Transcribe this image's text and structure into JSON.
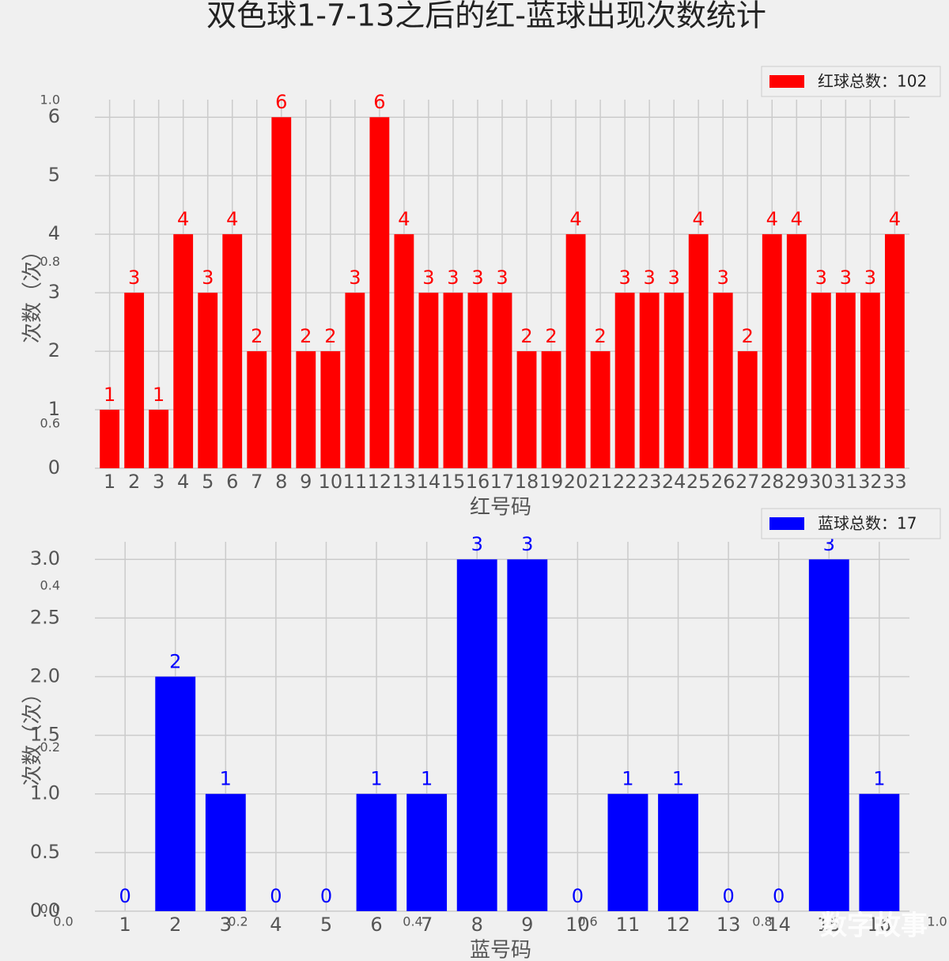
{
  "chart_data": [
    {
      "type": "bar",
      "title": "双色球1-7-13之后的红-蓝球出现次数统计",
      "x": [
        1,
        2,
        3,
        4,
        5,
        6,
        7,
        8,
        9,
        10,
        11,
        12,
        13,
        14,
        15,
        16,
        17,
        18,
        19,
        20,
        21,
        22,
        23,
        24,
        25,
        26,
        27,
        28,
        29,
        30,
        31,
        32,
        33
      ],
      "series": [
        {
          "name": "红球总数：102",
          "color": "#ff0000",
          "values": [
            1,
            3,
            1,
            4,
            3,
            4,
            2,
            6,
            2,
            2,
            3,
            6,
            4,
            3,
            3,
            3,
            3,
            2,
            2,
            4,
            2,
            3,
            3,
            3,
            4,
            3,
            2,
            4,
            4,
            3,
            3,
            3,
            4
          ]
        }
      ],
      "xlabel": "红号码",
      "ylabel": "次数（次）",
      "xlim": [
        0.4,
        33.6
      ],
      "ylim": [
        0,
        6.3
      ],
      "yticks": [
        0,
        1,
        2,
        3,
        4,
        5,
        6
      ],
      "grid": true,
      "legend": "upper right"
    },
    {
      "type": "bar",
      "x": [
        1,
        2,
        3,
        4,
        5,
        6,
        7,
        8,
        9,
        10,
        11,
        12,
        13,
        14,
        15,
        16
      ],
      "series": [
        {
          "name": "蓝球总数：17",
          "color": "#0000ff",
          "values": [
            0,
            2,
            1,
            0,
            0,
            1,
            1,
            3,
            3,
            0,
            1,
            1,
            0,
            0,
            3,
            1
          ]
        }
      ],
      "xlabel": "蓝号码",
      "ylabel": "次数（次）",
      "xlim": [
        0.4,
        16.6
      ],
      "ylim": [
        0,
        3.15
      ],
      "yticks": [
        {
          "value": 0,
          "label": "0.0"
        },
        {
          "value": 0.5,
          "label": "0.5"
        },
        {
          "value": 1,
          "label": "1.0"
        },
        {
          "value": 1.5,
          "label": "1.5"
        },
        {
          "value": 2,
          "label": "2.0"
        },
        {
          "value": 2.5,
          "label": "2.5"
        },
        {
          "value": 3,
          "label": "3.0"
        }
      ],
      "grid": true,
      "legend": "upper right"
    },
    {
      "type": "axes",
      "xlim": [
        0,
        1
      ],
      "ylim": [
        0,
        1
      ],
      "xticks": [
        {
          "value": 0,
          "label": "0.0"
        },
        {
          "value": 0.2,
          "label": "0.2"
        },
        {
          "value": 0.4,
          "label": "0.4"
        },
        {
          "value": 0.6,
          "label": "0.6"
        },
        {
          "value": 0.8,
          "label": "0.8"
        },
        {
          "value": 1,
          "label": "1.0"
        }
      ],
      "yticks": [
        {
          "value": 0,
          "label": "0.0"
        },
        {
          "value": 0.2,
          "label": "0.2"
        },
        {
          "value": 0.4,
          "label": "0.4"
        },
        {
          "value": 0.6,
          "label": "0.6"
        },
        {
          "value": 0.8,
          "label": "0.8"
        },
        {
          "value": 1,
          "label": "1.0"
        }
      ],
      "watermark": "数字故事"
    }
  ]
}
